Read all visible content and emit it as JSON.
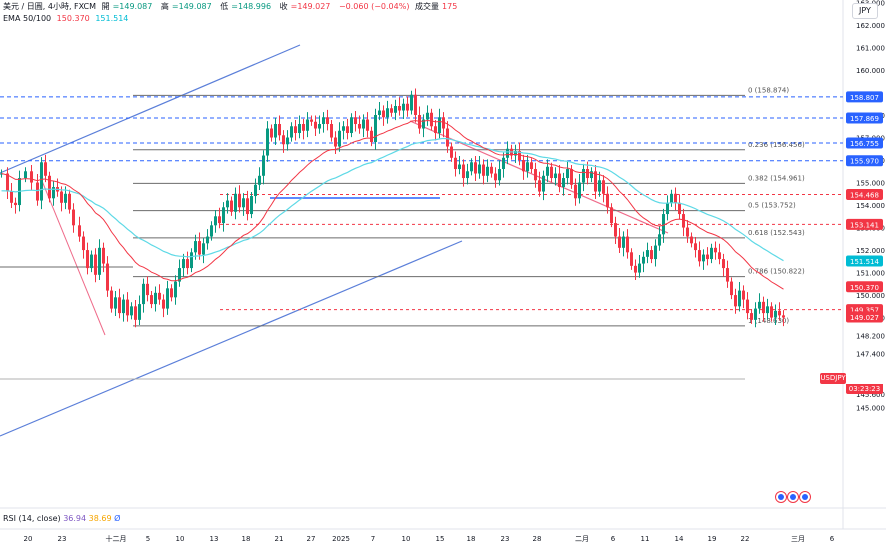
{
  "header": {
    "symbol": "美元 / 日圓, 4小時, FXCM",
    "open_label": "開",
    "open_value": "=149.087",
    "high_label": "高",
    "high_value": "=149.087",
    "low_label": "低",
    "low_value": "=148.996",
    "close_label": "收",
    "close_value": "=149.027",
    "change": "−0.060 (−0.04%)",
    "volume_label": "成交量",
    "volume_value": "175",
    "ema_label": "EMA 50/100",
    "ema50_value": "150.370",
    "ema100_value": "151.514"
  },
  "currency_button": "JPY",
  "rsi": {
    "label": "RSI (14, close)",
    "value1": "36.94",
    "value2": "38.69",
    "value3": "Ø"
  },
  "symbol_tag": "USDJPY",
  "countdown": "03:23:23",
  "colors": {
    "up": "#089981",
    "down": "#f23645",
    "ema50": "#f23645",
    "ema100": "#5ed9e6",
    "channel": "#5b7fd9",
    "trend_down": "#ef6b8a",
    "fib": "#555555",
    "dashed_blue": "#2962ff",
    "dashed_red": "#f23645"
  },
  "chart_data": {
    "type": "candlestick",
    "y_axis": {
      "ylim": [
        144.75,
        163.55
      ],
      "ticks": [
        "145.000",
        "145.600",
        "147.400",
        "148.200",
        "149.000",
        "150.000",
        "151.000",
        "152.000",
        "153.000",
        "154.000",
        "155.000",
        "156.000",
        "157.000",
        "158.000",
        "160.000",
        "161.000",
        "162.000",
        "163.000"
      ]
    },
    "x_axis": {
      "tick_labels": [
        "20",
        "23",
        "十二月",
        "5",
        "10",
        "13",
        "18",
        "21",
        "27",
        "2025",
        "7",
        "10",
        "15",
        "18",
        "23",
        "28",
        "二月",
        "6",
        "11",
        "14",
        "19",
        "22",
        "三月",
        "6"
      ]
    },
    "price_badges": [
      {
        "value": "158.807",
        "color": "#2962ff"
      },
      {
        "value": "157.869",
        "color": "#2962ff"
      },
      {
        "value": "156.755",
        "color": "#2962ff"
      },
      {
        "value": "155.970",
        "color": "#2962ff"
      },
      {
        "value": "154.468",
        "color": "#f23645"
      },
      {
        "value": "153.141",
        "color": "#f23645"
      },
      {
        "value": "151.514",
        "color": "#00bcd4"
      },
      {
        "value": "150.370",
        "color": "#f23645"
      },
      {
        "value": "149.357",
        "color": "#f23645"
      },
      {
        "value": "149.027",
        "color": "#f23645"
      }
    ],
    "fibonacci": [
      {
        "ratio": "0",
        "label": "0 (158.874)",
        "price": 158.874
      },
      {
        "ratio": "0.236",
        "label": "0.236 (156.456)",
        "price": 156.456
      },
      {
        "ratio": "0.382",
        "label": "0.382 (154.961)",
        "price": 154.961
      },
      {
        "ratio": "0.5",
        "label": "0.5 (153.752)",
        "price": 153.752
      },
      {
        "ratio": "0.618",
        "label": "0.618 (152.543)",
        "price": 152.543
      },
      {
        "ratio": "0.786",
        "label": "0.786 (150.822)",
        "price": 150.822
      },
      {
        "ratio": "1",
        "label": "1 (148.630)",
        "price": 148.63
      }
    ],
    "path_points": [
      [
        0,
        155.4
      ],
      [
        6,
        154.6
      ],
      [
        10,
        154.1
      ],
      [
        14,
        154.0
      ],
      [
        18,
        155.2
      ],
      [
        24,
        155.5
      ],
      [
        30,
        155.0
      ],
      [
        36,
        154.2
      ],
      [
        40,
        155.9
      ],
      [
        44,
        155.3
      ],
      [
        48,
        154.3
      ],
      [
        52,
        154.8
      ],
      [
        56,
        154.6
      ],
      [
        60,
        154.1
      ],
      [
        64,
        154.5
      ],
      [
        68,
        153.8
      ],
      [
        72,
        153.1
      ],
      [
        78,
        152.6
      ],
      [
        82,
        152.0
      ],
      [
        86,
        151.2
      ],
      [
        90,
        151.8
      ],
      [
        94,
        150.9
      ],
      [
        98,
        152.1
      ],
      [
        102,
        151.4
      ],
      [
        106,
        150.2
      ],
      [
        110,
        149.4
      ],
      [
        114,
        149.9
      ],
      [
        118,
        149.2
      ],
      [
        122,
        149.8
      ],
      [
        126,
        149.1
      ],
      [
        130,
        149.5
      ],
      [
        134,
        148.9
      ],
      [
        138,
        149.6
      ],
      [
        142,
        150.5
      ],
      [
        146,
        150.0
      ],
      [
        150,
        149.6
      ],
      [
        154,
        150.1
      ],
      [
        158,
        149.8
      ],
      [
        162,
        149.4
      ],
      [
        166,
        150.3
      ],
      [
        170,
        149.9
      ],
      [
        174,
        150.6
      ],
      [
        178,
        151.2
      ],
      [
        182,
        151.6
      ],
      [
        186,
        151.2
      ],
      [
        190,
        151.9
      ],
      [
        194,
        152.4
      ],
      [
        198,
        151.8
      ],
      [
        202,
        152.3
      ],
      [
        206,
        152.6
      ],
      [
        210,
        153.1
      ],
      [
        214,
        153.5
      ],
      [
        218,
        153.2
      ],
      [
        222,
        153.9
      ],
      [
        226,
        154.2
      ],
      [
        230,
        153.7
      ],
      [
        234,
        154.5
      ],
      [
        238,
        153.9
      ],
      [
        242,
        154.3
      ],
      [
        246,
        153.6
      ],
      [
        250,
        154.4
      ],
      [
        254,
        154.9
      ],
      [
        258,
        155.3
      ],
      [
        262,
        156.2
      ],
      [
        266,
        157.4
      ],
      [
        270,
        157.0
      ],
      [
        274,
        157.6
      ],
      [
        278,
        157.1
      ],
      [
        282,
        156.7
      ],
      [
        286,
        157.0
      ],
      [
        290,
        157.5
      ],
      [
        294,
        157.2
      ],
      [
        298,
        157.6
      ],
      [
        302,
        157.3
      ],
      [
        306,
        157.8
      ],
      [
        310,
        157.7
      ],
      [
        314,
        157.4
      ],
      [
        318,
        157.6
      ],
      [
        322,
        157.9
      ],
      [
        326,
        157.6
      ],
      [
        330,
        157.0
      ],
      [
        334,
        156.6
      ],
      [
        338,
        157.3
      ],
      [
        342,
        157.5
      ],
      [
        346,
        157.2
      ],
      [
        350,
        157.9
      ],
      [
        354,
        157.6
      ],
      [
        358,
        157.4
      ],
      [
        362,
        157.8
      ],
      [
        366,
        157.3
      ],
      [
        370,
        156.8
      ],
      [
        374,
        158.0
      ],
      [
        378,
        158.2
      ],
      [
        382,
        157.9
      ],
      [
        386,
        158.3
      ],
      [
        390,
        158.1
      ],
      [
        394,
        158.4
      ],
      [
        398,
        158.2
      ],
      [
        402,
        158.5
      ],
      [
        406,
        158.2
      ],
      [
        410,
        158.9
      ],
      [
        414,
        158.0
      ],
      [
        418,
        157.4
      ],
      [
        422,
        157.8
      ],
      [
        426,
        158.1
      ],
      [
        430,
        157.5
      ],
      [
        434,
        157.2
      ],
      [
        438,
        157.9
      ],
      [
        442,
        157.4
      ],
      [
        446,
        156.6
      ],
      [
        450,
        156.1
      ],
      [
        454,
        155.6
      ],
      [
        458,
        155.8
      ],
      [
        462,
        155.2
      ],
      [
        466,
        155.5
      ],
      [
        470,
        155.9
      ],
      [
        474,
        155.4
      ],
      [
        478,
        155.8
      ],
      [
        482,
        155.3
      ],
      [
        486,
        155.7
      ],
      [
        490,
        155.4
      ],
      [
        494,
        155.1
      ],
      [
        498,
        155.6
      ],
      [
        502,
        156.1
      ],
      [
        506,
        156.5
      ],
      [
        510,
        156.2
      ],
      [
        514,
        156.4
      ],
      [
        518,
        156.0
      ],
      [
        522,
        155.5
      ],
      [
        526,
        155.9
      ],
      [
        530,
        155.6
      ],
      [
        534,
        155.1
      ],
      [
        538,
        154.6
      ],
      [
        542,
        155.3
      ],
      [
        546,
        155.7
      ],
      [
        550,
        155.2
      ],
      [
        554,
        155.4
      ],
      [
        558,
        154.8
      ],
      [
        562,
        155.2
      ],
      [
        566,
        155.6
      ],
      [
        570,
        154.9
      ],
      [
        574,
        154.3
      ],
      [
        578,
        155.0
      ],
      [
        582,
        155.6
      ],
      [
        586,
        155.2
      ],
      [
        590,
        155.5
      ],
      [
        594,
        154.6
      ],
      [
        598,
        155.1
      ],
      [
        602,
        154.5
      ],
      [
        606,
        153.9
      ],
      [
        610,
        153.2
      ],
      [
        614,
        152.6
      ],
      [
        618,
        152.1
      ],
      [
        622,
        152.6
      ],
      [
        626,
        151.9
      ],
      [
        630,
        151.3
      ],
      [
        634,
        151.0
      ],
      [
        638,
        151.4
      ],
      [
        642,
        151.7
      ],
      [
        646,
        152.0
      ],
      [
        650,
        151.6
      ],
      [
        654,
        152.2
      ],
      [
        658,
        152.7
      ],
      [
        662,
        153.6
      ],
      [
        666,
        154.1
      ],
      [
        670,
        154.5
      ],
      [
        674,
        154.1
      ],
      [
        678,
        153.6
      ],
      [
        682,
        153.0
      ],
      [
        686,
        152.6
      ],
      [
        690,
        152.3
      ],
      [
        694,
        152.0
      ],
      [
        698,
        151.5
      ],
      [
        702,
        151.8
      ],
      [
        706,
        151.6
      ],
      [
        710,
        152.1
      ],
      [
        714,
        151.9
      ],
      [
        718,
        151.6
      ],
      [
        722,
        151.2
      ],
      [
        726,
        150.6
      ],
      [
        730,
        150.0
      ],
      [
        734,
        149.5
      ],
      [
        738,
        150.2
      ],
      [
        742,
        149.8
      ],
      [
        746,
        149.2
      ],
      [
        750,
        148.9
      ],
      [
        754,
        149.4
      ],
      [
        758,
        149.7
      ],
      [
        762,
        149.2
      ],
      [
        766,
        149.5
      ],
      [
        770,
        149.0
      ],
      [
        774,
        149.3
      ],
      [
        778,
        149.1
      ],
      [
        782,
        149.0
      ]
    ]
  }
}
